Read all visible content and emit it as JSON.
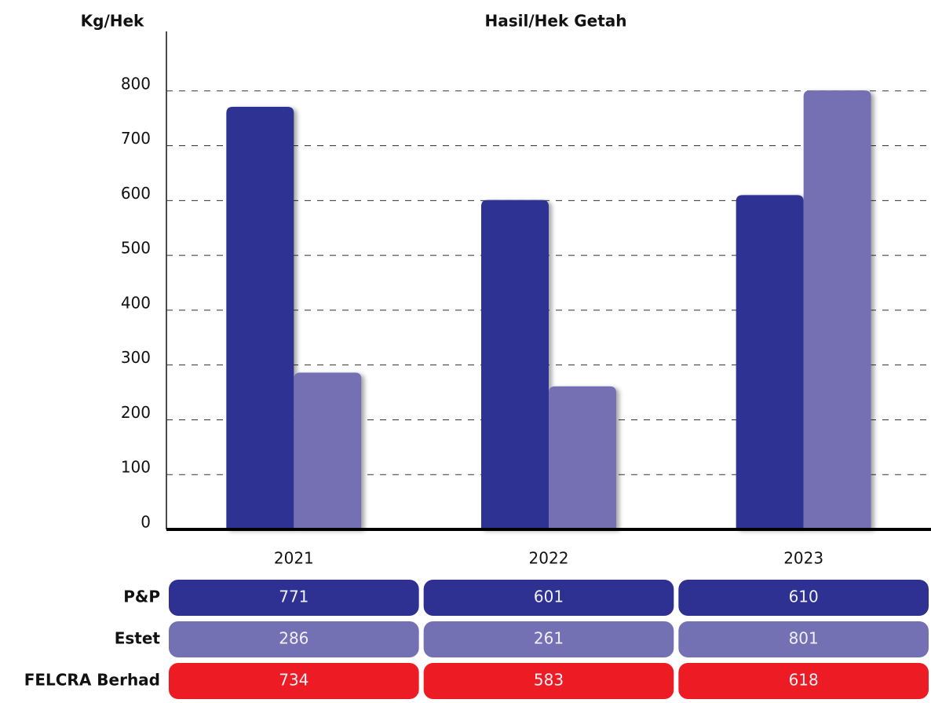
{
  "chart_data": {
    "type": "bar",
    "title": "Hasil/Hek Getah",
    "y_label": "Kg/Hek",
    "categories": [
      "2021",
      "2022",
      "2023"
    ],
    "series": [
      {
        "name": "P&P",
        "color": "#2e3192",
        "bar": true,
        "values": [
          771,
          601,
          610
        ]
      },
      {
        "name": "Estet",
        "color": "#7470b4",
        "bar": true,
        "values": [
          286,
          261,
          801
        ]
      },
      {
        "name": "FELCRA Berhad",
        "color": "#ed1c24",
        "bar": false,
        "values": [
          734,
          583,
          618
        ]
      }
    ],
    "ylim": [
      0,
      900
    ],
    "yticks": [
      0,
      100,
      200,
      300,
      400,
      500,
      600,
      700,
      800
    ],
    "grid": true
  }
}
